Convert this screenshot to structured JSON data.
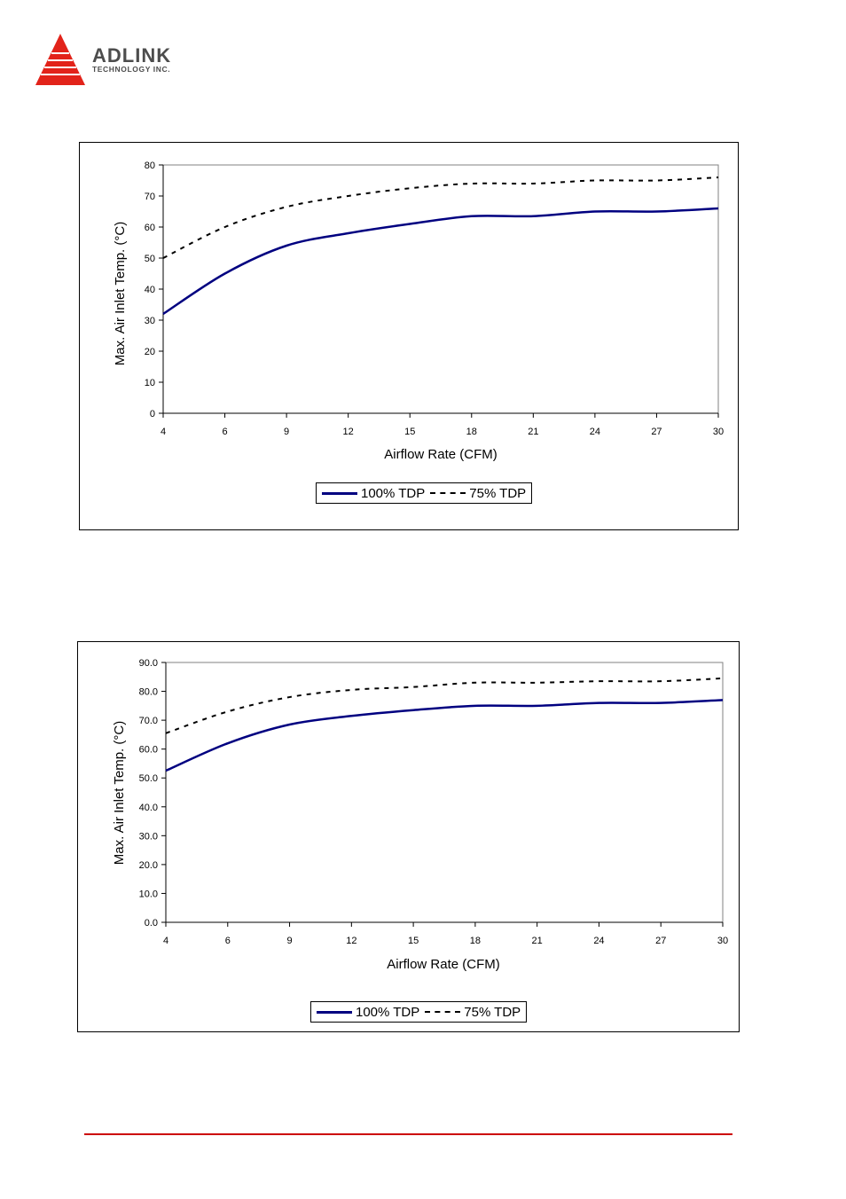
{
  "header": {
    "logo_name": "ADLINK",
    "logo_sub": "TECHNOLOGY INC.",
    "brand_color": "#e2231a"
  },
  "chart_data": [
    {
      "type": "line",
      "title": "",
      "xlabel": "Airflow Rate (CFM)",
      "ylabel": "Max. Air Inlet Temp. (°C)",
      "x": [
        4,
        6,
        9,
        12,
        15,
        18,
        21,
        24,
        27,
        30
      ],
      "ylim": [
        0,
        80
      ],
      "yticks": [
        "0",
        "10",
        "20",
        "30",
        "40",
        "50",
        "60",
        "70",
        "80"
      ],
      "series": [
        {
          "name": "100% TDP",
          "values": [
            32,
            45,
            54,
            58,
            61,
            63.5,
            63.5,
            65,
            65,
            66
          ],
          "color": "#000080",
          "style": "solid"
        },
        {
          "name": "75% TDP",
          "values": [
            50,
            60,
            66.5,
            70,
            72.5,
            74,
            74,
            75,
            75,
            76
          ],
          "color": "#000000",
          "style": "dashed"
        }
      ],
      "legend_position": "bottom"
    },
    {
      "type": "line",
      "title": "",
      "xlabel": "Airflow Rate (CFM)",
      "ylabel": "Max. Air Inlet Temp. (°C)",
      "x": [
        4,
        6,
        9,
        12,
        15,
        18,
        21,
        24,
        27,
        30
      ],
      "ylim": [
        0,
        90
      ],
      "yticks": [
        "0.0",
        "10.0",
        "20.0",
        "30.0",
        "40.0",
        "50.0",
        "60.0",
        "70.0",
        "80.0",
        "90.0"
      ],
      "series": [
        {
          "name": "100% TDP",
          "values": [
            52.5,
            62,
            68.5,
            71.5,
            73.5,
            75,
            75,
            76,
            76,
            77
          ],
          "color": "#000080",
          "style": "solid"
        },
        {
          "name": "75% TDP",
          "values": [
            65.5,
            73,
            78,
            80.5,
            81.5,
            83,
            83,
            83.5,
            83.5,
            84.5
          ],
          "color": "#000000",
          "style": "dashed"
        }
      ],
      "legend_position": "bottom"
    }
  ]
}
